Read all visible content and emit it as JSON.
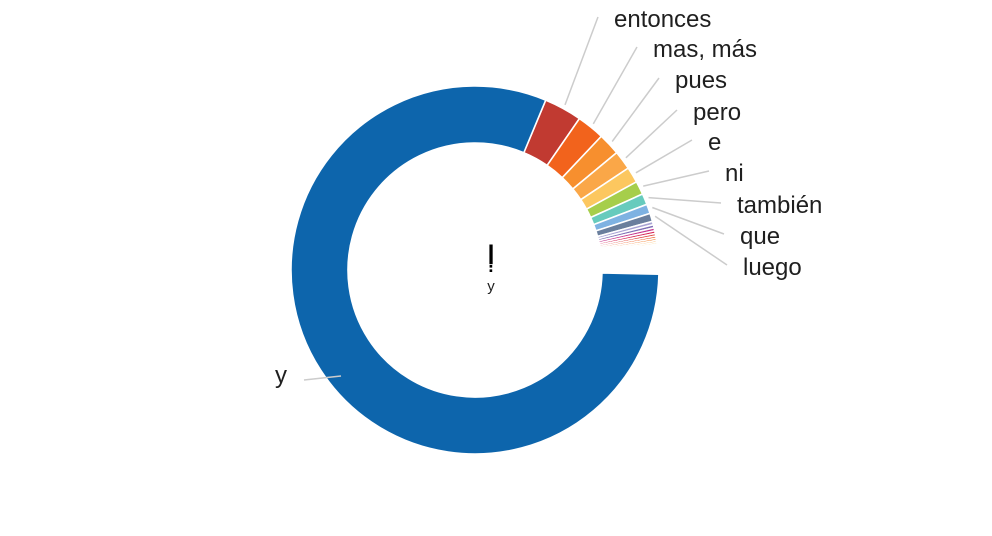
{
  "page": {
    "background_color": "#ffffff"
  },
  "chart_data": {
    "type": "pie",
    "subtype": "donut",
    "title": "",
    "legend": "none",
    "unit": "percent",
    "label_color": "#1f1f1f",
    "leader_line_color": "#cccccc",
    "center_label": {
      "source_word": "וְ",
      "top_translation": "y"
    },
    "start_angle_deg": 22.6,
    "segments": [
      {
        "label": "entonces",
        "value": 3.33,
        "color": "#c13a31"
      },
      {
        "label": "mas, más",
        "value": 2.44,
        "color": "#f2631c"
      },
      {
        "label": "pues",
        "value": 1.94,
        "color": "#f78f2e"
      },
      {
        "label": "pero",
        "value": 1.67,
        "color": "#faa748"
      },
      {
        "label": "e",
        "value": 1.39,
        "color": "#fcc75f"
      },
      {
        "label": "ni",
        "value": 1.17,
        "color": "#a6ce4b"
      },
      {
        "label": "también",
        "value": 0.97,
        "color": "#67cbbd"
      },
      {
        "label": "que",
        "value": 0.83,
        "color": "#7eb2e2"
      },
      {
        "label": "luego",
        "value": 0.72,
        "color": "#6a7f9d"
      },
      {
        "label": "",
        "value": 0.3,
        "color": "#a8a4d4"
      },
      {
        "label": "",
        "value": 0.28,
        "color": "#7e6fb5"
      },
      {
        "label": "",
        "value": 0.26,
        "color": "#c5388f"
      },
      {
        "label": "",
        "value": 0.24,
        "color": "#d82757"
      },
      {
        "label": "",
        "value": 0.22,
        "color": "#dc4038"
      },
      {
        "label": "",
        "value": 0.2,
        "color": "#ed5a22"
      },
      {
        "label": "",
        "value": 0.19,
        "color": "#f38030"
      },
      {
        "label": "",
        "value": 0.17,
        "color": "#f9a344"
      },
      {
        "label": "",
        "value": 0.16,
        "color": "#fbc75e"
      },
      {
        "label": "",
        "value": 0.14,
        "color": "#fddd85"
      },
      {
        "label": "",
        "value": 0.13,
        "color": "#fdeca9"
      },
      {
        "label": "",
        "value": 0.12,
        "color": "#d8ecb2"
      },
      {
        "label": "",
        "value": 0.11,
        "color": "#bfe4cf"
      },
      {
        "label": "",
        "value": 2.1,
        "color": "#ffffff",
        "gap": true
      },
      {
        "label": "y",
        "value": 80.9,
        "color": "#0d65ac"
      }
    ]
  }
}
